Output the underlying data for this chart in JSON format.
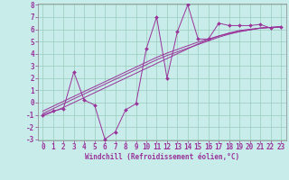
{
  "xlabel": "Windchill (Refroidissement éolien,°C)",
  "x_data": [
    0,
    1,
    2,
    3,
    4,
    5,
    6,
    7,
    8,
    9,
    10,
    11,
    12,
    13,
    14,
    15,
    16,
    17,
    18,
    19,
    20,
    21,
    22,
    23
  ],
  "y_scatter": [
    -1.0,
    -0.7,
    -0.5,
    2.5,
    0.2,
    -0.2,
    -3.0,
    -2.4,
    -0.6,
    -0.1,
    4.4,
    7.0,
    2.0,
    5.8,
    8.0,
    5.2,
    5.2,
    6.5,
    6.3,
    6.3,
    6.3,
    6.4,
    6.1,
    6.2
  ],
  "regression1": [
    -1.1,
    -0.75,
    -0.4,
    0.0,
    0.4,
    0.8,
    1.2,
    1.6,
    2.0,
    2.4,
    2.8,
    3.2,
    3.6,
    4.0,
    4.4,
    4.8,
    5.15,
    5.45,
    5.7,
    5.9,
    6.0,
    6.1,
    6.15,
    6.2
  ],
  "regression2": [
    -0.9,
    -0.5,
    -0.1,
    0.3,
    0.7,
    1.1,
    1.5,
    1.9,
    2.3,
    2.7,
    3.1,
    3.5,
    3.85,
    4.15,
    4.45,
    4.75,
    5.05,
    5.35,
    5.6,
    5.8,
    5.95,
    6.1,
    6.15,
    6.2
  ],
  "regression3": [
    -0.7,
    -0.3,
    0.1,
    0.5,
    0.9,
    1.3,
    1.7,
    2.1,
    2.5,
    2.9,
    3.3,
    3.7,
    4.05,
    4.35,
    4.65,
    4.95,
    5.2,
    5.45,
    5.65,
    5.82,
    5.95,
    6.08,
    6.15,
    6.2
  ],
  "color": "#993399",
  "bg_color": "#c8ecea",
  "grid_color": "#99ccbb",
  "ylim": [
    -3,
    8
  ],
  "xlim": [
    -0.5,
    23.5
  ],
  "yticks": [
    -3,
    -2,
    -1,
    0,
    1,
    2,
    3,
    4,
    5,
    6,
    7,
    8
  ],
  "xticks": [
    0,
    1,
    2,
    3,
    4,
    5,
    6,
    7,
    8,
    9,
    10,
    11,
    12,
    13,
    14,
    15,
    16,
    17,
    18,
    19,
    20,
    21,
    22,
    23
  ],
  "tick_fontsize": 5.5,
  "xlabel_fontsize": 5.5
}
